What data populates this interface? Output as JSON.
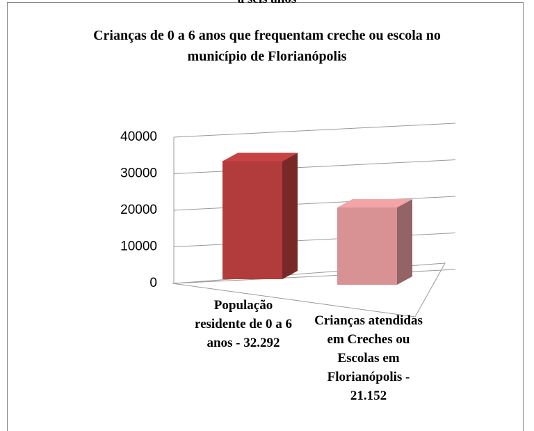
{
  "chart_data": {
    "type": "bar3d",
    "caption": "a seis anos",
    "title": "Crianças de 0 a 6 anos que frequentam creche ou escola  no município de Florianópolis",
    "categories": [
      "População residente de 0 a 6 anos - 32.292",
      "Crianças atendidas em Creches  ou Escolas em Florianópolis - 21.152"
    ],
    "values": [
      32292,
      21152
    ],
    "colors": [
      "#b23b3b",
      "#d89294"
    ],
    "ylim": [
      0,
      40000
    ],
    "yticks": [
      0,
      10000,
      20000,
      30000,
      40000
    ],
    "grid": true
  }
}
